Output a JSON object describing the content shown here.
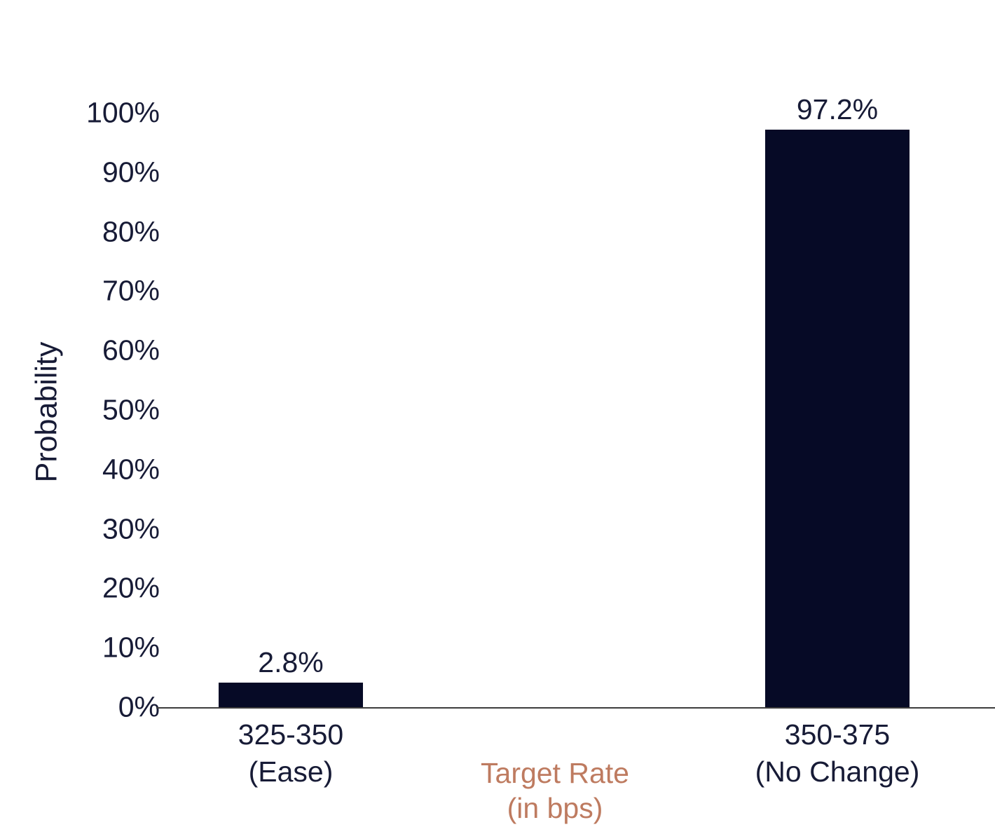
{
  "chart_data": {
    "type": "bar",
    "title": "",
    "ylabel": "Probability",
    "xlabel": "Target Rate (in bps)",
    "xlabel_lines": [
      "Target Rate",
      "(in bps)"
    ],
    "categories": [
      [
        "325-350",
        "(Ease)"
      ],
      [
        "350-375",
        "(No Change)"
      ]
    ],
    "values": [
      2.8,
      97.2
    ],
    "value_labels": [
      "2.8%",
      "97.2%"
    ],
    "y_ticks": [
      "0%",
      "10%",
      "20%",
      "30%",
      "40%",
      "50%",
      "60%",
      "70%",
      "80%",
      "90%",
      "100%"
    ],
    "ylim": [
      0,
      100
    ],
    "grid": "off",
    "legend": "none",
    "colors": {
      "bar": "#060A26",
      "text": "#171B36",
      "xlabel": "#BE7B60",
      "axis_line": "#3D3D3D",
      "background": "#FFFFFF"
    }
  }
}
